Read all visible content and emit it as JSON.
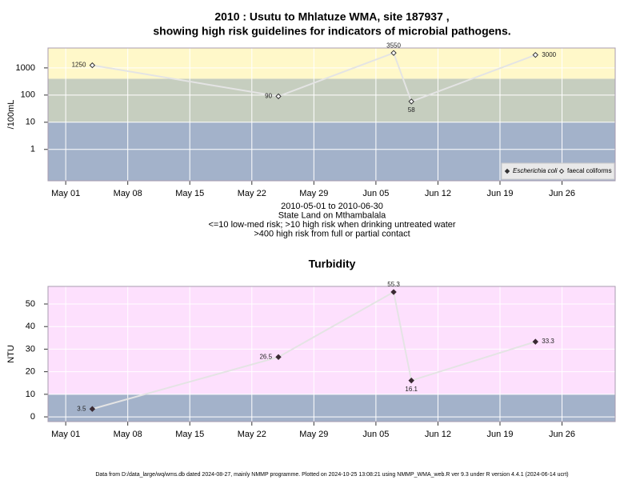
{
  "chart_data": [
    {
      "type": "line",
      "title": [
        "2010 : Usutu to Mhlatuze WMA, site 187937 ,",
        "showing high risk guidelines for indicators of microbial pathogens."
      ],
      "subtitle": [
        "2010-05-01 to 2010-06-30",
        "State Land on Mthambalala",
        "<=10 low-med risk; >10 high risk when drinking untreated water",
        ">400 high risk from full or partial contact"
      ],
      "y_label": "/100mL",
      "log_y": true,
      "grid": true,
      "legend": "bottom-right",
      "x": [
        "2010-05-04",
        "2010-05-25",
        "2010-06-07",
        "2010-06-09",
        "2010-06-23"
      ],
      "xlim": [
        "2010-04-29",
        "2010-07-02"
      ],
      "xticks": [
        {
          "value": "2010-05-01",
          "label": "May 01"
        },
        {
          "value": "2010-05-08",
          "label": "May 08"
        },
        {
          "value": "2010-05-15",
          "label": "May 15"
        },
        {
          "value": "2010-05-22",
          "label": "May 22"
        },
        {
          "value": "2010-05-29",
          "label": "May 29"
        },
        {
          "value": "2010-06-05",
          "label": "Jun 05"
        },
        {
          "value": "2010-06-12",
          "label": "Jun 12"
        },
        {
          "value": "2010-06-19",
          "label": "Jun 19"
        },
        {
          "value": "2010-06-26",
          "label": "Jun 26"
        }
      ],
      "ylim": [
        0.07,
        5400
      ],
      "yticks": [
        1,
        10,
        100,
        1000
      ],
      "bands": [
        {
          "to": 10,
          "color": "#a3b2ca"
        },
        {
          "to": 400,
          "color": "#c6cebf"
        },
        {
          "color": "#fff8c9"
        }
      ],
      "series": [
        {
          "name": "Escherichia coli",
          "color": "#333333",
          "filled": true,
          "values": [
            null,
            null,
            null,
            null,
            null
          ]
        },
        {
          "name": "faecal coliforms",
          "color": "#333333",
          "filled": false,
          "values": [
            1250,
            90,
            3550,
            58,
            3000
          ]
        }
      ]
    },
    {
      "type": "line",
      "title": "Turbidity",
      "y_label": "NTU",
      "log_y": false,
      "grid": true,
      "x": [
        "2010-05-04",
        "2010-05-25",
        "2010-06-07",
        "2010-06-09",
        "2010-06-23"
      ],
      "xlim": [
        "2010-04-29",
        "2010-07-02"
      ],
      "xticks": [
        {
          "value": "2010-05-01",
          "label": "May 01"
        },
        {
          "value": "2010-05-08",
          "label": "May 08"
        },
        {
          "value": "2010-05-15",
          "label": "May 15"
        },
        {
          "value": "2010-05-22",
          "label": "May 22"
        },
        {
          "value": "2010-05-29",
          "label": "May 29"
        },
        {
          "value": "2010-06-05",
          "label": "Jun 05"
        },
        {
          "value": "2010-06-12",
          "label": "Jun 12"
        },
        {
          "value": "2010-06-19",
          "label": "Jun 19"
        },
        {
          "value": "2010-06-26",
          "label": "Jun 26"
        }
      ],
      "ylim": [
        -2.1,
        57.8
      ],
      "yticks": [
        0,
        10,
        20,
        30,
        40,
        50
      ],
      "bands": [
        {
          "to": 10,
          "color": "#a3b2ca"
        },
        {
          "color": "#fde0fd"
        }
      ],
      "series": [
        {
          "color": "#3a2a33",
          "filled": true,
          "values": [
            3.5,
            26.5,
            55.3,
            16.1,
            33.3
          ]
        }
      ]
    }
  ],
  "footer": "Data from D:/data_large/wq/wms.db dated 2024-08-27, mainly NMMP programme. Plotted on 2024-10-25 13:08:21 using NMMP_WMA_web.R ver 9.3 under R version 4.4.1 (2024-06-14 ucrt)"
}
